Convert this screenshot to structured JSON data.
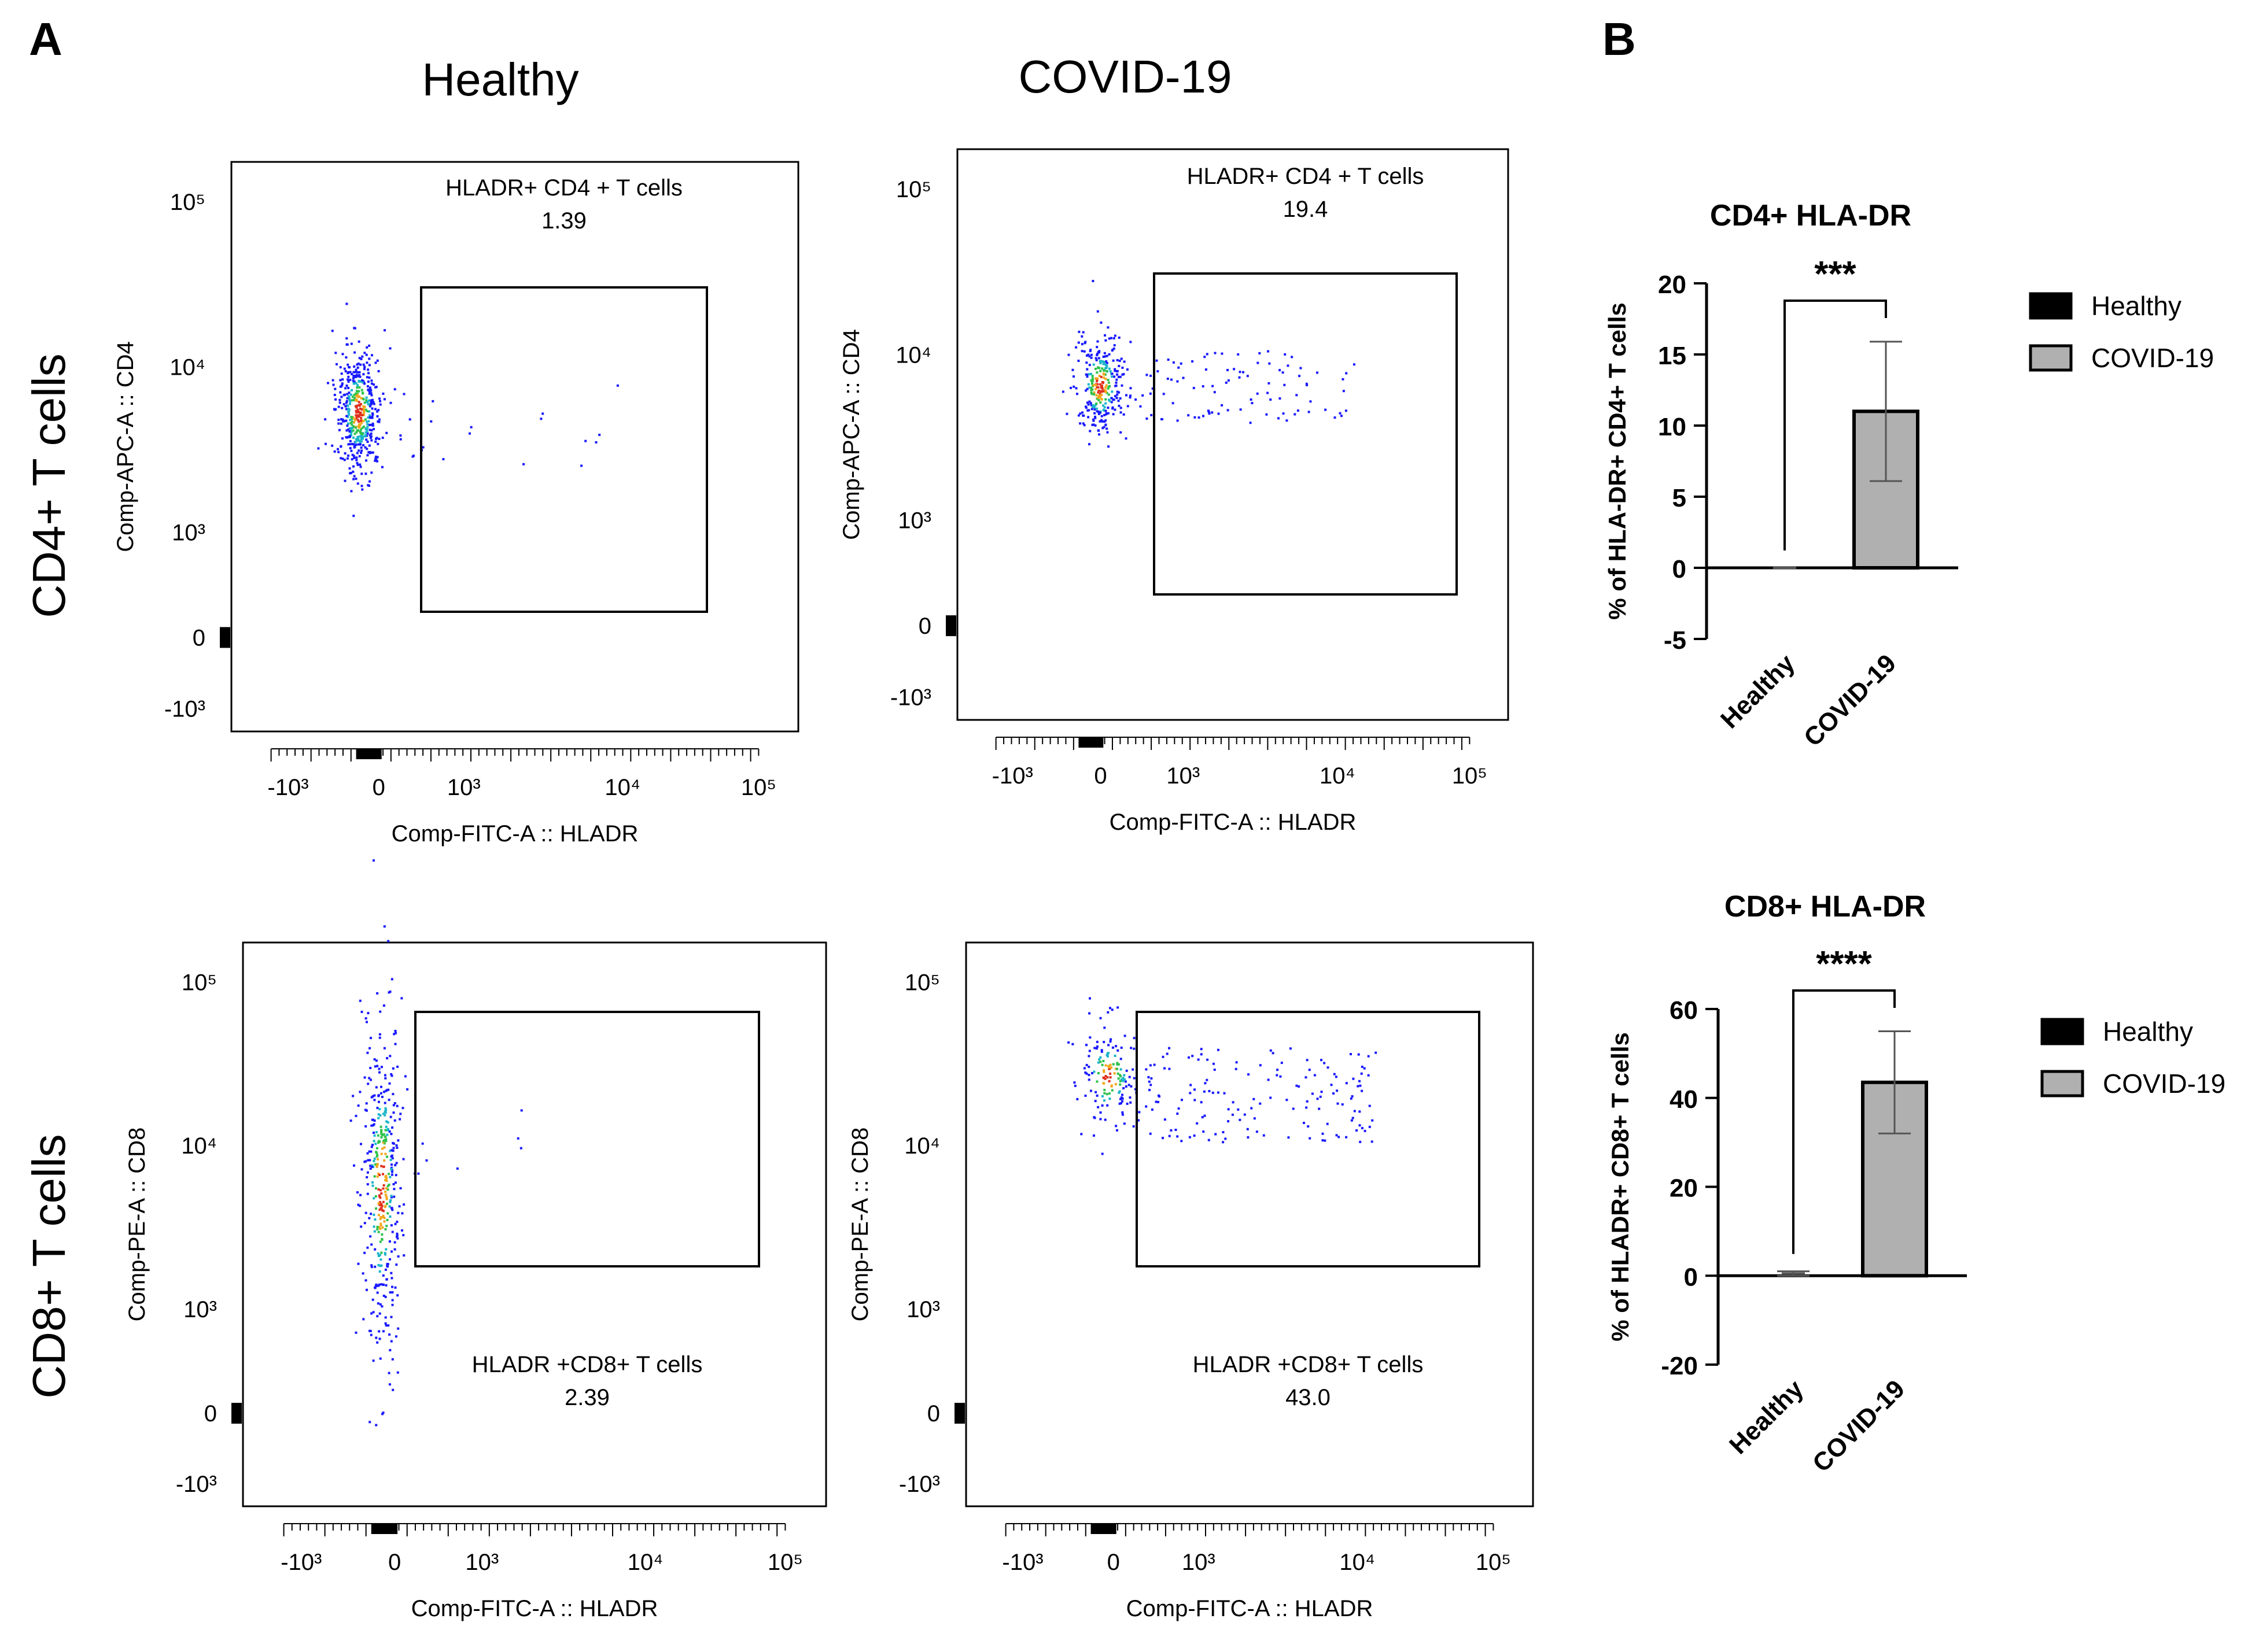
{
  "panel_labels": {
    "a": "A",
    "b": "B"
  },
  "column_titles": [
    "Healthy",
    "COVID-19"
  ],
  "row_titles": [
    "CD4+ T cells",
    "CD8+ T cells"
  ],
  "chart_data": [
    {
      "type": "scatter",
      "id": "flow-cd4-healthy",
      "xlabel": "Comp-FITC-A :: HLADR",
      "ylabel": "Comp-APC-A :: CD4",
      "gate": {
        "label": "HLADR+ CD4 + T cells",
        "percent": "1.39"
      },
      "x_ticks": [
        "-10³",
        "0",
        "10³",
        "10⁴",
        "10⁵"
      ],
      "y_ticks": [
        "10⁵",
        "10⁴",
        "10³",
        "0",
        "-10³"
      ]
    },
    {
      "type": "scatter",
      "id": "flow-cd4-covid",
      "xlabel": "Comp-FITC-A :: HLADR",
      "ylabel": "Comp-APC-A :: CD4",
      "gate": {
        "label": "HLADR+ CD4 + T cells",
        "percent": "19.4"
      },
      "x_ticks": [
        "-10³",
        "0",
        "10³",
        "10⁴",
        "10⁵"
      ],
      "y_ticks": [
        "10⁵",
        "10⁴",
        "10³",
        "0",
        "-10³"
      ]
    },
    {
      "type": "scatter",
      "id": "flow-cd8-healthy",
      "xlabel": "Comp-FITC-A :: HLADR",
      "ylabel": "Comp-PE-A :: CD8",
      "gate": {
        "label": "HLADR +CD8+ T cells",
        "percent": "2.39"
      },
      "x_ticks": [
        "-10³",
        "0",
        "10³",
        "10⁴",
        "10⁵"
      ],
      "y_ticks": [
        "10⁵",
        "10⁴",
        "10³",
        "0",
        "-10³"
      ]
    },
    {
      "type": "scatter",
      "id": "flow-cd8-covid",
      "xlabel": "Comp-FITC-A :: HLADR",
      "ylabel": "Comp-PE-A :: CD8",
      "gate": {
        "label": "HLADR +CD8+ T cells",
        "percent": "43.0"
      },
      "x_ticks": [
        "-10³",
        "0",
        "10³",
        "10⁴",
        "10⁵"
      ],
      "y_ticks": [
        "10⁵",
        "10⁴",
        "10³",
        "0",
        "-10³"
      ]
    },
    {
      "type": "bar",
      "id": "bar-cd4",
      "title": "CD4+ HLA-DR",
      "ylabel": "% of  HLA-DR+ CD4+ T cells",
      "categories": [
        "Healthy",
        "COVID-19"
      ],
      "values": [
        0,
        11.0
      ],
      "errors": [
        0,
        4.9
      ],
      "ylim": [
        -5,
        20
      ],
      "yticks": [
        20,
        15,
        10,
        5,
        0,
        -5
      ],
      "ytick_labels": [
        "20",
        "15",
        "10",
        "5",
        "0",
        "-5"
      ],
      "significance": "***",
      "legend": [
        "Healthy",
        "COVID-19"
      ],
      "colors": [
        "#000000",
        "#b0b0b0"
      ]
    },
    {
      "type": "bar",
      "id": "bar-cd8",
      "title": "CD8+ HLA-DR",
      "ylabel": "% of HLADR+ CD8+ T cells",
      "categories": [
        "Healthy",
        "COVID-19"
      ],
      "values": [
        0.5,
        43.5
      ],
      "errors": [
        0.5,
        11.5
      ],
      "ylim": [
        -20,
        60
      ],
      "yticks": [
        60,
        40,
        20,
        0,
        -20
      ],
      "ytick_labels": [
        "60",
        "40",
        "20",
        "0",
        "-20"
      ],
      "significance": "****",
      "legend": [
        "Healthy",
        "COVID-19"
      ],
      "colors": [
        "#000000",
        "#b0b0b0"
      ]
    }
  ]
}
